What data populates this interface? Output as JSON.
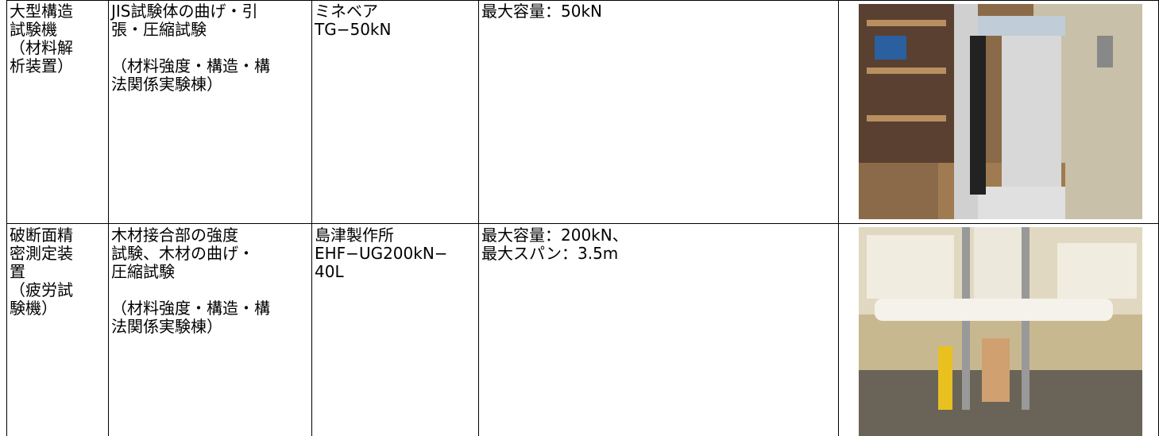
{
  "table": {
    "rows": [
      {
        "cells": [
          {
            "paragraphs": [
              [
                "大型構造",
                "試験機",
                "（材料解",
                "析装置）"
              ]
            ]
          },
          {
            "paragraphs": [
              [
                "JIS試験体の曲げ・引",
                "張・圧縮試験"
              ],
              [
                "（材料強度・構造・構",
                "法関係実験棟）"
              ]
            ]
          },
          {
            "paragraphs": [
              [
                "ミネベア",
                "TG−50kN"
              ]
            ]
          },
          {
            "paragraphs": [
              [
                "最大容量：50kN"
              ]
            ]
          }
        ]
      },
      {
        "cells": [
          {
            "paragraphs": [
              [
                "破断面精",
                "密測定装",
                "置",
                "（疲労試",
                "験機）"
              ]
            ]
          },
          {
            "paragraphs": [
              [
                "木材接合部の強度",
                "試験、木材の曲げ・",
                "圧縮試験"
              ],
              [
                "（材料強度・構造・構",
                "法関係実験棟）"
              ]
            ]
          },
          {
            "paragraphs": [
              [
                "島津製作所",
                "EHF−UG200kN−",
                "40L"
              ]
            ]
          },
          {
            "paragraphs": [
              [
                "最大容量：200kN、",
                "最大スパン：3.5m"
              ]
            ]
          }
        ]
      }
    ]
  }
}
